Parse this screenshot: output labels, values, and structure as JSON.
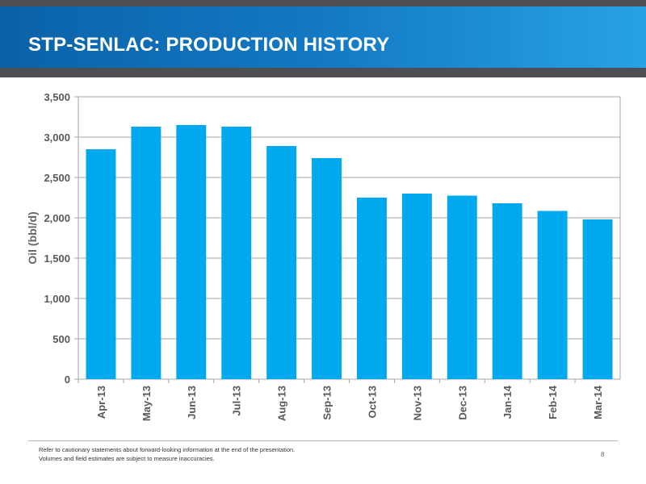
{
  "header": {
    "title": "STP-SENLAC: PRODUCTION HISTORY"
  },
  "chart_data": {
    "type": "bar",
    "title": "",
    "xlabel": "",
    "ylabel": "Oil (bbl/d)",
    "categories": [
      "Apr-13",
      "May-13",
      "Jun-13",
      "Jul-13",
      "Aug-13",
      "Sep-13",
      "Oct-13",
      "Nov-13",
      "Dec-13",
      "Jan-14",
      "Feb-14",
      "Mar-14"
    ],
    "values": [
      2850,
      3130,
      3150,
      3130,
      2890,
      2740,
      2250,
      2300,
      2275,
      2180,
      2085,
      1980
    ],
    "ylim": [
      0,
      3500
    ],
    "yticks": [
      0,
      500,
      1000,
      1500,
      2000,
      2500,
      3000,
      3500
    ],
    "ytick_labels": [
      "0",
      "500",
      "1,000",
      "1,500",
      "2,000",
      "2,500",
      "3,000",
      "3,500"
    ],
    "grid": true,
    "bar_color": "#00a9ee",
    "legend": "none"
  },
  "footer": {
    "note_1": "Refer to cautionary statements about forward-looking information at the end of the presentation.",
    "note_2": "Volumes and field estimates are subject to measure inaccuracies.",
    "page_number": "8"
  },
  "colors": {
    "accent": "#1379c4",
    "strip": "#4d4f52",
    "bar": "#00a9ee"
  }
}
